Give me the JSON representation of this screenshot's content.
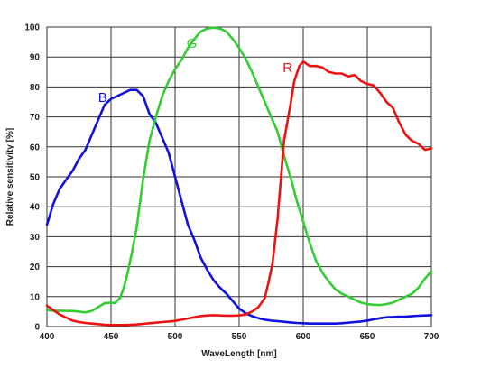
{
  "chart_data": {
    "type": "line",
    "title": "",
    "xlabel": "WaveLength [nm]",
    "ylabel": "Relative sensitivity [%]",
    "xlim": [
      400,
      700
    ],
    "ylim": [
      0,
      100
    ],
    "x_ticks": [
      "400",
      "450",
      "500",
      "550",
      "600",
      "650",
      "700"
    ],
    "y_ticks": [
      "0",
      "10",
      "20",
      "30",
      "40",
      "50",
      "60",
      "70",
      "80",
      "90",
      "100"
    ],
    "grid": true,
    "legend": "none",
    "series": [
      {
        "name": "B",
        "color": "#1111dd",
        "label_at": [
          440,
          75
        ],
        "points": [
          [
            400,
            34
          ],
          [
            405,
            41
          ],
          [
            410,
            46
          ],
          [
            415,
            49
          ],
          [
            420,
            52
          ],
          [
            425,
            56
          ],
          [
            430,
            59
          ],
          [
            435,
            64
          ],
          [
            440,
            69
          ],
          [
            445,
            74
          ],
          [
            450,
            76
          ],
          [
            455,
            77
          ],
          [
            460,
            78
          ],
          [
            465,
            79
          ],
          [
            470,
            79
          ],
          [
            475,
            77
          ],
          [
            480,
            71
          ],
          [
            485,
            68
          ],
          [
            490,
            63
          ],
          [
            495,
            58
          ],
          [
            500,
            50
          ],
          [
            505,
            42
          ],
          [
            510,
            34
          ],
          [
            515,
            29
          ],
          [
            520,
            23
          ],
          [
            525,
            19
          ],
          [
            530,
            15.5
          ],
          [
            535,
            13
          ],
          [
            540,
            11
          ],
          [
            545,
            8.5
          ],
          [
            550,
            6
          ],
          [
            555,
            4.5
          ],
          [
            560,
            3.5
          ],
          [
            565,
            2.8
          ],
          [
            570,
            2.3
          ],
          [
            575,
            2
          ],
          [
            580,
            1.8
          ],
          [
            585,
            1.6
          ],
          [
            590,
            1.4
          ],
          [
            595,
            1.2
          ],
          [
            600,
            1.1
          ],
          [
            605,
            1
          ],
          [
            610,
            1
          ],
          [
            615,
            1
          ],
          [
            620,
            1
          ],
          [
            625,
            1
          ],
          [
            630,
            1.1
          ],
          [
            635,
            1.3
          ],
          [
            640,
            1.5
          ],
          [
            645,
            1.7
          ],
          [
            650,
            2
          ],
          [
            655,
            2.4
          ],
          [
            660,
            2.8
          ],
          [
            665,
            3.1
          ],
          [
            670,
            3.2
          ],
          [
            675,
            3.3
          ],
          [
            680,
            3.3
          ],
          [
            685,
            3.5
          ],
          [
            690,
            3.6
          ],
          [
            695,
            3.7
          ],
          [
            700,
            3.8
          ]
        ]
      },
      {
        "name": "G",
        "color": "#33cc33",
        "label_at": [
          509,
          93
        ],
        "points": [
          [
            400,
            5.5
          ],
          [
            405,
            5.3
          ],
          [
            410,
            5.3
          ],
          [
            415,
            5.2
          ],
          [
            420,
            5.2
          ],
          [
            425,
            5
          ],
          [
            430,
            4.7
          ],
          [
            435,
            5.2
          ],
          [
            440,
            6.5
          ],
          [
            445,
            7.8
          ],
          [
            450,
            8
          ],
          [
            453,
            7.9
          ],
          [
            457,
            9.5
          ],
          [
            460,
            13
          ],
          [
            463,
            18
          ],
          [
            466,
            24
          ],
          [
            470,
            33
          ],
          [
            475,
            49
          ],
          [
            480,
            62
          ],
          [
            485,
            70
          ],
          [
            490,
            77
          ],
          [
            495,
            82
          ],
          [
            500,
            86
          ],
          [
            505,
            89
          ],
          [
            510,
            93
          ],
          [
            515,
            96
          ],
          [
            520,
            98.5
          ],
          [
            525,
            99.5
          ],
          [
            530,
            99.8
          ],
          [
            535,
            99.5
          ],
          [
            540,
            98.5
          ],
          [
            545,
            96
          ],
          [
            550,
            93
          ],
          [
            555,
            89.5
          ],
          [
            560,
            85
          ],
          [
            565,
            80
          ],
          [
            570,
            75
          ],
          [
            575,
            70
          ],
          [
            580,
            65
          ],
          [
            585,
            57
          ],
          [
            590,
            50
          ],
          [
            595,
            42
          ],
          [
            600,
            35
          ],
          [
            605,
            28
          ],
          [
            610,
            22
          ],
          [
            615,
            18
          ],
          [
            620,
            15
          ],
          [
            625,
            12.5
          ],
          [
            630,
            11
          ],
          [
            635,
            10
          ],
          [
            640,
            9
          ],
          [
            645,
            8
          ],
          [
            650,
            7.5
          ],
          [
            655,
            7.3
          ],
          [
            660,
            7.2
          ],
          [
            665,
            7.5
          ],
          [
            670,
            8
          ],
          [
            675,
            9
          ],
          [
            680,
            10
          ],
          [
            685,
            11
          ],
          [
            690,
            13
          ],
          [
            695,
            16
          ],
          [
            700,
            18.5
          ]
        ]
      },
      {
        "name": "R",
        "color": "#ee1111",
        "label_at": [
          584,
          85
        ],
        "points": [
          [
            400,
            7
          ],
          [
            405,
            5.5
          ],
          [
            410,
            4
          ],
          [
            415,
            3
          ],
          [
            420,
            2
          ],
          [
            425,
            1.5
          ],
          [
            430,
            1.2
          ],
          [
            435,
            1
          ],
          [
            440,
            0.8
          ],
          [
            445,
            0.6
          ],
          [
            450,
            0.5
          ],
          [
            455,
            0.5
          ],
          [
            460,
            0.5
          ],
          [
            465,
            0.6
          ],
          [
            470,
            0.7
          ],
          [
            475,
            0.9
          ],
          [
            480,
            1.1
          ],
          [
            485,
            1.3
          ],
          [
            490,
            1.5
          ],
          [
            495,
            1.7
          ],
          [
            500,
            1.9
          ],
          [
            505,
            2.3
          ],
          [
            510,
            2.7
          ],
          [
            515,
            3.1
          ],
          [
            520,
            3.5
          ],
          [
            525,
            3.7
          ],
          [
            530,
            3.8
          ],
          [
            535,
            3.7
          ],
          [
            540,
            3.6
          ],
          [
            545,
            3.6
          ],
          [
            550,
            3.7
          ],
          [
            555,
            4
          ],
          [
            560,
            5
          ],
          [
            565,
            6.5
          ],
          [
            570,
            9.5
          ],
          [
            573,
            15
          ],
          [
            576,
            21
          ],
          [
            580,
            36
          ],
          [
            585,
            62
          ],
          [
            590,
            74
          ],
          [
            593,
            82
          ],
          [
            597,
            87
          ],
          [
            600,
            88.5
          ],
          [
            605,
            87
          ],
          [
            610,
            87
          ],
          [
            615,
            86.5
          ],
          [
            620,
            85
          ],
          [
            625,
            84.5
          ],
          [
            630,
            84.5
          ],
          [
            635,
            83.5
          ],
          [
            640,
            84
          ],
          [
            645,
            82
          ],
          [
            650,
            81
          ],
          [
            655,
            80.5
          ],
          [
            660,
            78
          ],
          [
            665,
            75
          ],
          [
            670,
            73
          ],
          [
            675,
            68
          ],
          [
            680,
            64
          ],
          [
            685,
            62
          ],
          [
            690,
            61
          ],
          [
            695,
            59
          ],
          [
            700,
            59.5
          ]
        ]
      }
    ]
  }
}
